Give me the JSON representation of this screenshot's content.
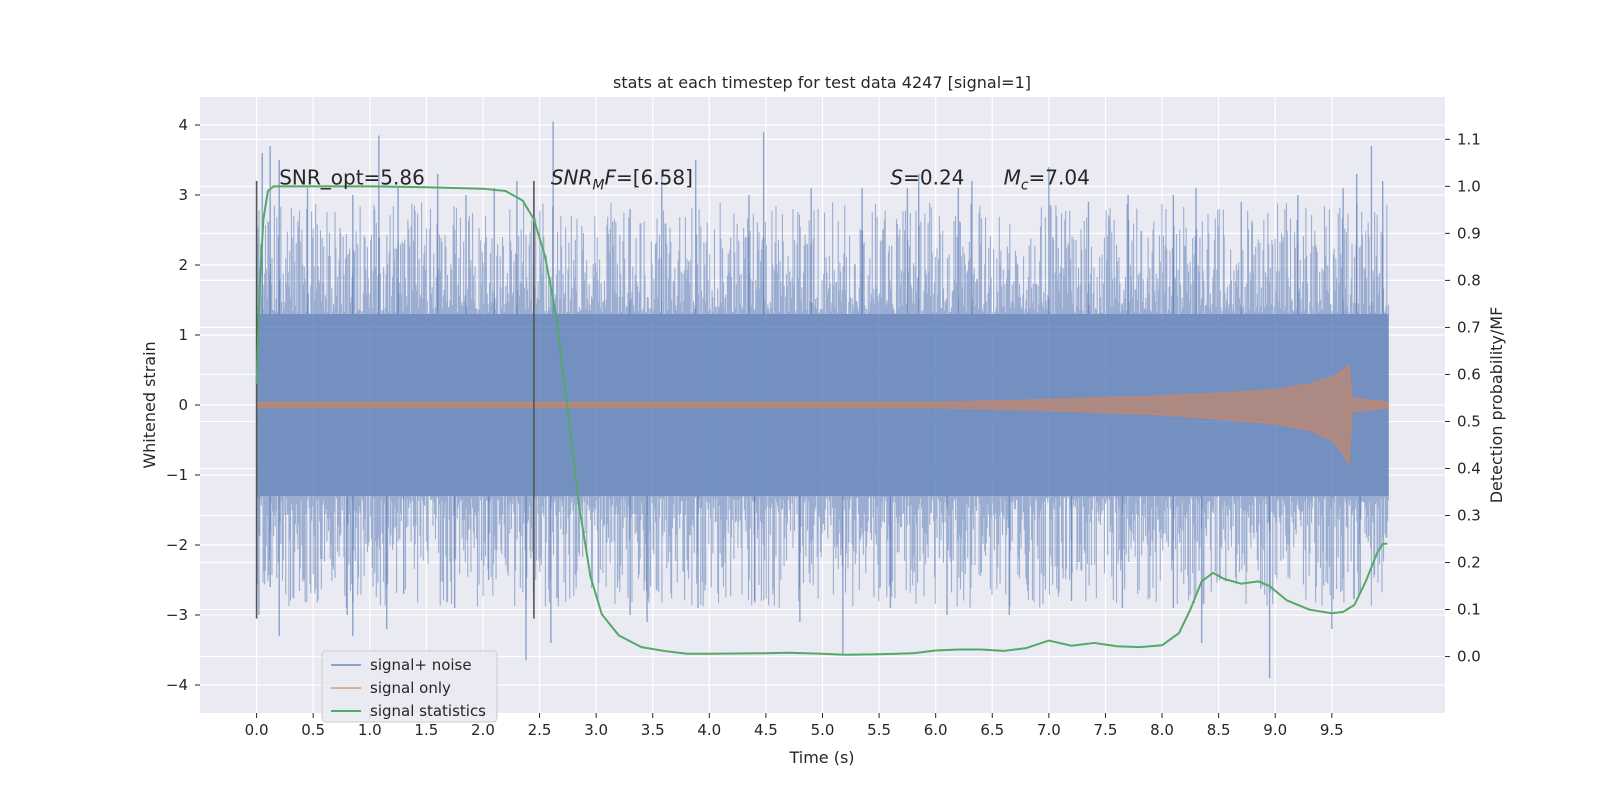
{
  "chart_data": {
    "type": "line",
    "title": "stats at each timestep for test data 4247 [signal=1]",
    "xlabel": "Time (s)",
    "ylabel": "Whitened strain",
    "ylabel_right": "Detection probability/MF",
    "xlim": [
      -0.5,
      10.5
    ],
    "ylim": [
      -4.4,
      4.4
    ],
    "ylim_right": [
      -0.12,
      1.19
    ],
    "x_ticks": [
      0.0,
      0.5,
      1.0,
      1.5,
      2.0,
      2.5,
      3.0,
      3.5,
      4.0,
      4.5,
      5.0,
      5.5,
      6.0,
      6.5,
      7.0,
      7.5,
      8.0,
      8.5,
      9.0,
      9.5
    ],
    "x_tick_labels": [
      "0.0",
      "0.5",
      "1.0",
      "1.5",
      "2.0",
      "2.5",
      "3.0",
      "3.5",
      "4.0",
      "4.5",
      "5.0",
      "5.5",
      "6.0",
      "6.5",
      "7.0",
      "7.5",
      "8.0",
      "8.5",
      "9.0",
      "9.5"
    ],
    "y_ticks": [
      -4,
      -3,
      -2,
      -1,
      0,
      1,
      2,
      3,
      4
    ],
    "y_tick_labels": [
      "−4",
      "−3",
      "−2",
      "−1",
      "0",
      "1",
      "2",
      "3",
      "4"
    ],
    "y_right_ticks": [
      0.0,
      0.1,
      0.2,
      0.3,
      0.4,
      0.5,
      0.6,
      0.7,
      0.8,
      0.9,
      1.0,
      1.1
    ],
    "y_right_tick_labels": [
      "0.0",
      "0.1",
      "0.2",
      "0.3",
      "0.4",
      "0.5",
      "0.6",
      "0.7",
      "0.8",
      "0.9",
      "1.0",
      "1.1"
    ],
    "grid": true,
    "legend_position": "lower-left",
    "series": [
      {
        "name": "signal+ noise",
        "color": "#4c72b0",
        "axis": "left",
        "style": "noise-band",
        "time_range": [
          0.0,
          10.0
        ],
        "core_band": [
          -1.3,
          1.3
        ],
        "spikes_up": [
          [
            0.05,
            3.6
          ],
          [
            0.12,
            3.7
          ],
          [
            0.2,
            3.5
          ],
          [
            0.45,
            3.1
          ],
          [
            0.85,
            3.0
          ],
          [
            1.08,
            3.85
          ],
          [
            1.25,
            3.1
          ],
          [
            1.6,
            3.3
          ],
          [
            1.85,
            3.0
          ],
          [
            2.1,
            3.1
          ],
          [
            2.3,
            3.2
          ],
          [
            2.62,
            4.05
          ],
          [
            3.3,
            2.8
          ],
          [
            3.58,
            3.35
          ],
          [
            3.88,
            3.5
          ],
          [
            4.35,
            3.0
          ],
          [
            4.48,
            3.9
          ],
          [
            4.9,
            3.1
          ],
          [
            5.35,
            3.1
          ],
          [
            5.75,
            3.1
          ],
          [
            5.85,
            3.3
          ],
          [
            6.2,
            3.1
          ],
          [
            6.32,
            3.2
          ],
          [
            7.0,
            3.4
          ],
          [
            7.35,
            2.9
          ],
          [
            7.7,
            3.0
          ],
          [
            8.1,
            3.0
          ],
          [
            8.3,
            3.1
          ],
          [
            8.7,
            2.9
          ],
          [
            9.2,
            3.0
          ],
          [
            9.6,
            3.1
          ],
          [
            9.72,
            3.3
          ],
          [
            9.85,
            3.7
          ],
          [
            9.95,
            3.2
          ]
        ],
        "spikes_down": [
          [
            0.02,
            -3.0
          ],
          [
            0.12,
            -2.6
          ],
          [
            0.2,
            -3.3
          ],
          [
            0.8,
            -3.0
          ],
          [
            0.85,
            -3.3
          ],
          [
            1.15,
            -3.2
          ],
          [
            1.3,
            -2.7
          ],
          [
            1.75,
            -2.9
          ],
          [
            2.05,
            -2.5
          ],
          [
            2.38,
            -3.65
          ],
          [
            2.6,
            -3.4
          ],
          [
            3.3,
            -3.0
          ],
          [
            3.45,
            -3.1
          ],
          [
            3.9,
            -2.9
          ],
          [
            4.4,
            -2.8
          ],
          [
            4.8,
            -3.1
          ],
          [
            5.18,
            -3.55
          ],
          [
            5.6,
            -2.9
          ],
          [
            6.1,
            -3.0
          ],
          [
            6.65,
            -3.0
          ],
          [
            7.2,
            -2.8
          ],
          [
            7.65,
            -2.9
          ],
          [
            8.1,
            -2.9
          ],
          [
            8.35,
            -3.4
          ],
          [
            8.95,
            -3.9
          ],
          [
            9.5,
            -3.2
          ],
          [
            9.75,
            -2.7
          ]
        ]
      },
      {
        "name": "signal only",
        "color": "#dd8452",
        "axis": "left",
        "style": "chirp",
        "envelope": [
          [
            0.0,
            0.04
          ],
          [
            2.0,
            0.04
          ],
          [
            4.0,
            0.04
          ],
          [
            6.0,
            0.04
          ],
          [
            7.0,
            0.08
          ],
          [
            8.0,
            0.13
          ],
          [
            8.5,
            0.17
          ],
          [
            9.0,
            0.22
          ],
          [
            9.3,
            0.3
          ],
          [
            9.5,
            0.4
          ],
          [
            9.6,
            0.5
          ],
          [
            9.65,
            0.57
          ],
          [
            9.68,
            0.1
          ],
          [
            10.0,
            0.04
          ]
        ],
        "lower_envelope": [
          [
            0.0,
            -0.04
          ],
          [
            2.0,
            -0.04
          ],
          [
            4.0,
            -0.04
          ],
          [
            6.0,
            -0.04
          ],
          [
            7.0,
            -0.08
          ],
          [
            8.0,
            -0.14
          ],
          [
            8.5,
            -0.2
          ],
          [
            9.0,
            -0.27
          ],
          [
            9.3,
            -0.36
          ],
          [
            9.5,
            -0.5
          ],
          [
            9.6,
            -0.7
          ],
          [
            9.65,
            -0.85
          ],
          [
            9.68,
            -0.1
          ],
          [
            10.0,
            -0.04
          ]
        ]
      },
      {
        "name": "signal statistics",
        "color": "#55a868",
        "axis": "right",
        "style": "line",
        "x": [
          0.0,
          0.03,
          0.06,
          0.1,
          0.15,
          0.25,
          0.5,
          1.0,
          1.5,
          2.0,
          2.2,
          2.35,
          2.45,
          2.55,
          2.65,
          2.75,
          2.85,
          2.95,
          3.05,
          3.2,
          3.4,
          3.6,
          3.8,
          4.0,
          4.5,
          4.7,
          5.0,
          5.2,
          5.5,
          5.8,
          6.0,
          6.2,
          6.4,
          6.6,
          6.8,
          7.0,
          7.2,
          7.4,
          7.6,
          7.8,
          8.0,
          8.15,
          8.25,
          8.35,
          8.45,
          8.55,
          8.7,
          8.85,
          8.95,
          9.1,
          9.3,
          9.5,
          9.6,
          9.7,
          9.8,
          9.9,
          9.95,
          9.99
        ],
        "y": [
          0.58,
          0.8,
          0.93,
          0.99,
          1.0,
          1.0,
          1.0,
          1.0,
          0.998,
          0.995,
          0.99,
          0.97,
          0.93,
          0.85,
          0.72,
          0.52,
          0.32,
          0.17,
          0.09,
          0.045,
          0.02,
          0.012,
          0.006,
          0.006,
          0.007,
          0.008,
          0.006,
          0.004,
          0.005,
          0.007,
          0.013,
          0.015,
          0.015,
          0.012,
          0.018,
          0.034,
          0.023,
          0.029,
          0.022,
          0.02,
          0.024,
          0.05,
          0.1,
          0.16,
          0.178,
          0.165,
          0.155,
          0.16,
          0.15,
          0.12,
          0.1,
          0.092,
          0.095,
          0.11,
          0.16,
          0.22,
          0.24,
          0.24
        ]
      }
    ],
    "vlines": [
      {
        "x": 0.0,
        "ymin": -3.05,
        "ymax": 3.2,
        "color": "#555555"
      },
      {
        "x": 2.45,
        "ymin": -3.05,
        "ymax": 3.2,
        "color": "#555555"
      }
    ],
    "annotations": [
      {
        "text": "SNR_opt=5.86",
        "x": 0.2,
        "y": 3.15,
        "math": false
      },
      {
        "base": "SNR",
        "sub": "M",
        "rest": "F=[6.58]",
        "x": 2.6,
        "y": 3.15,
        "math": true
      },
      {
        "base": "S",
        "sub": "",
        "rest": "=0.24",
        "x": 5.6,
        "y": 3.15,
        "math": true
      },
      {
        "base": "M",
        "sub": "c",
        "rest": "=7.04",
        "x": 6.6,
        "y": 3.15,
        "math": true
      }
    ],
    "background_color": "#eaeaf2",
    "grid_color": "#ffffff"
  }
}
